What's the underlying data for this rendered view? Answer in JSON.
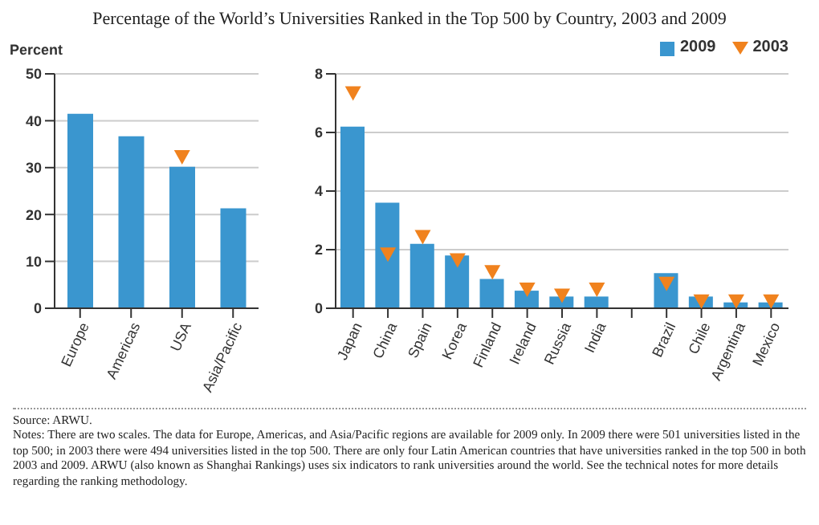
{
  "chart_data": [
    {
      "type": "bar",
      "title": "Percentage of the World’s Universities Ranked in the Top 500 by Country, 2003 and 2009",
      "ylabel": "Percent",
      "categories": [
        "Europe",
        "Americas",
        "USA",
        "Asia/Pacific"
      ],
      "series": [
        {
          "color": "#3a96cf",
          "values": [
            41.5,
            36.7,
            30.2,
            21.3
          ]
        },
        {
          "type": "scatter",
          "marker": "triangle",
          "color": "#f0821e",
          "values": [
            null,
            null,
            32.0,
            null
          ]
        }
      ],
      "ylim": [
        0,
        50
      ],
      "yticks": [
        0,
        10,
        20,
        30,
        40,
        50
      ],
      "grid": "y",
      "legend": false
    },
    {
      "type": "bar",
      "categories": [
        "Japan",
        "China",
        "Spain",
        "Korea",
        "Finland",
        "Ireland",
        "Russia",
        "India",
        null,
        "Brazil",
        "Chile",
        "Argentina",
        "Mexico"
      ],
      "series": [
        {
          "name": "2009",
          "color": "#3a96cf",
          "values": [
            6.2,
            3.6,
            2.2,
            1.8,
            1.0,
            0.6,
            0.4,
            0.4,
            null,
            1.2,
            0.4,
            0.2,
            0.2
          ]
        },
        {
          "type": "scatter",
          "name": "2003",
          "marker": "triangle",
          "color": "#f0821e",
          "values": [
            7.3,
            1.8,
            2.4,
            1.6,
            1.2,
            0.6,
            0.4,
            0.6,
            null,
            0.8,
            0.2,
            0.2,
            0.2
          ]
        }
      ],
      "ylim": [
        0,
        8
      ],
      "yticks": [
        0,
        2,
        4,
        6,
        8
      ],
      "grid": "y",
      "legend": "top right",
      "annotations": [
        "Source: ARWU.",
        "Notes: There are two scales.  The data for Europe, Americas, and Asia/Pacific regions are available for 2009 only.  In 2009 there were 501 universities listed in the top 500; in 2003 there were 494 universities listed in the top 500.  There are only four Latin American countries that have universities ranked in the top 500 in both 2003 and 2009.  ARWU (also known as Shanghai Rankings) uses six indicators to rank universities around the world.  See the technical notes for more details regarding the ranking methodology."
      ]
    }
  ]
}
